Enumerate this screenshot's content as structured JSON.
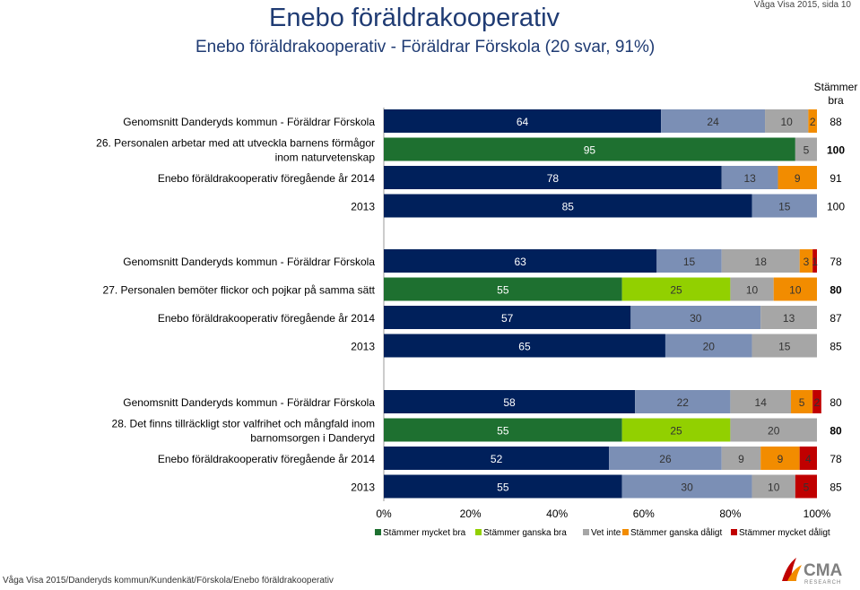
{
  "header": {
    "title": "Enebo föräldrakooperativ",
    "subtitle": "Enebo föräldrakooperativ - Föräldrar Förskola (20 svar, 91%)",
    "page_ref": "Våga Visa 2015, sida 10"
  },
  "footer": {
    "path": "Våga Visa 2015/Danderyds kommun/Kundenkät/Förskola/Enebo föräldrakooperativ"
  },
  "logo": {
    "text": "CMA",
    "subtext": "RESEARCH"
  },
  "colors": {
    "Stämmer mycket bra": "#00205B",
    "Stämmer ganska bra": "#7B8FB5",
    "Vet inte": "#A6A6A6",
    "Stämmer ganska dåligt": "#F28C00",
    "Stämmer mycket dåligt": "#C00000",
    "own_mycket_bra": "#1E7030",
    "own_ganska_bra": "#92D000",
    "text": "#1F3B73"
  },
  "chart_data": {
    "type": "bar",
    "orientation": "horizontal",
    "stacked": true,
    "percent": true,
    "xlim": [
      0,
      100
    ],
    "xticks": [
      "0%",
      "20%",
      "40%",
      "60%",
      "80%",
      "100%"
    ],
    "right_column_header": "Stämmer bra",
    "legend_position": "bottom",
    "legend": [
      "Stämmer mycket bra",
      "Stämmer ganska bra",
      "Vet inte",
      "Stämmer ganska dåligt",
      "Stämmer mycket dåligt"
    ],
    "groups": [
      {
        "question": "26. Personalen arbetar med att utveckla barnens förmågor inom naturvetenskap",
        "rows": [
          {
            "label": "Genomsnitt Danderyds kommun - Föräldrar Förskola",
            "kind": "benchmark",
            "values": [
              64,
              24,
              10,
              2,
              0
            ],
            "bra": "88"
          },
          {
            "label": "",
            "kind": "current",
            "values": [
              95,
              0,
              5,
              0,
              0
            ],
            "bra": "100"
          },
          {
            "label": "Enebo föräldrakooperativ föregående år 2014",
            "kind": "previous",
            "values": [
              78,
              13,
              0,
              9,
              0
            ],
            "bra": "91"
          },
          {
            "label": "2013",
            "kind": "previous",
            "values": [
              85,
              15,
              0,
              0,
              0
            ],
            "bra": "100"
          }
        ]
      },
      {
        "question": "27. Personalen bemöter flickor och pojkar på samma sätt",
        "rows": [
          {
            "label": "Genomsnitt Danderyds kommun - Föräldrar Förskola",
            "kind": "benchmark",
            "values": [
              63,
              15,
              18,
              3,
              1
            ],
            "bra": "78"
          },
          {
            "label": "",
            "kind": "current",
            "values": [
              55,
              25,
              10,
              10,
              0
            ],
            "bra": "80"
          },
          {
            "label": "Enebo föräldrakooperativ föregående år 2014",
            "kind": "previous",
            "values": [
              57,
              30,
              13,
              0,
              0
            ],
            "bra": "87"
          },
          {
            "label": "2013",
            "kind": "previous",
            "values": [
              65,
              20,
              15,
              0,
              0
            ],
            "bra": "85"
          }
        ]
      },
      {
        "question": "28. Det finns tillräckligt stor valfrihet och mångfald inom barnomsorgen i Danderyd",
        "rows": [
          {
            "label": "Genomsnitt Danderyds kommun - Föräldrar Förskola",
            "kind": "benchmark",
            "values": [
              58,
              22,
              14,
              5,
              2
            ],
            "bra": "80"
          },
          {
            "label": "",
            "kind": "current",
            "values": [
              55,
              25,
              20,
              0,
              0
            ],
            "bra": "80"
          },
          {
            "label": "Enebo föräldrakooperativ föregående år 2014",
            "kind": "previous",
            "values": [
              52,
              26,
              9,
              9,
              4
            ],
            "bra": "78"
          },
          {
            "label": "2013",
            "kind": "previous",
            "values": [
              55,
              30,
              10,
              0,
              5
            ],
            "bra": "85"
          }
        ]
      }
    ]
  }
}
